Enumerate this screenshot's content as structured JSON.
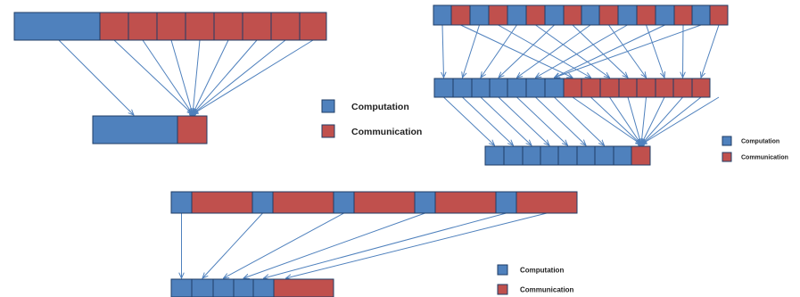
{
  "colors": {
    "computation": "#4f81bd",
    "communication": "#c0504d",
    "border": "#1f3d66",
    "arrow": "#4f81bd"
  },
  "diagrams": [
    {
      "id": "diagram-1",
      "source_row": [
        "computation",
        "communication",
        "communication",
        "communication",
        "communication",
        "communication",
        "communication",
        "communication",
        "communication"
      ],
      "target_row": [
        "computation",
        "communication"
      ],
      "legend": [
        {
          "label": "Computation",
          "color_key": "computation"
        },
        {
          "label": "Communication",
          "color_key": "communication"
        }
      ]
    },
    {
      "id": "diagram-2",
      "source_row": [
        "computation",
        "communication",
        "computation",
        "communication",
        "computation",
        "communication",
        "computation",
        "communication",
        "computation",
        "communication",
        "computation",
        "communication",
        "computation",
        "communication",
        "computation",
        "communication"
      ],
      "middle_row": [
        "computation",
        "computation",
        "computation",
        "computation",
        "computation",
        "computation",
        "computation",
        "communication",
        "communication",
        "communication",
        "communication",
        "communication",
        "communication",
        "communication",
        "communication"
      ],
      "target_row": [
        "computation",
        "computation",
        "computation",
        "computation",
        "computation",
        "computation",
        "computation",
        "computation",
        "communication"
      ],
      "legend": [
        {
          "label": "Computation",
          "color_key": "computation"
        },
        {
          "label": "Communication",
          "color_key": "communication"
        }
      ]
    },
    {
      "id": "diagram-3",
      "source_row": [
        "computation",
        "communication",
        "computation",
        "communication",
        "computation",
        "communication",
        "computation",
        "communication",
        "computation",
        "communication"
      ],
      "target_row": [
        "computation",
        "computation",
        "computation",
        "computation",
        "computation",
        "communication"
      ],
      "legend": [
        {
          "label": "Computation",
          "color_key": "computation"
        },
        {
          "label": "Communication",
          "color_key": "communication"
        }
      ]
    }
  ]
}
